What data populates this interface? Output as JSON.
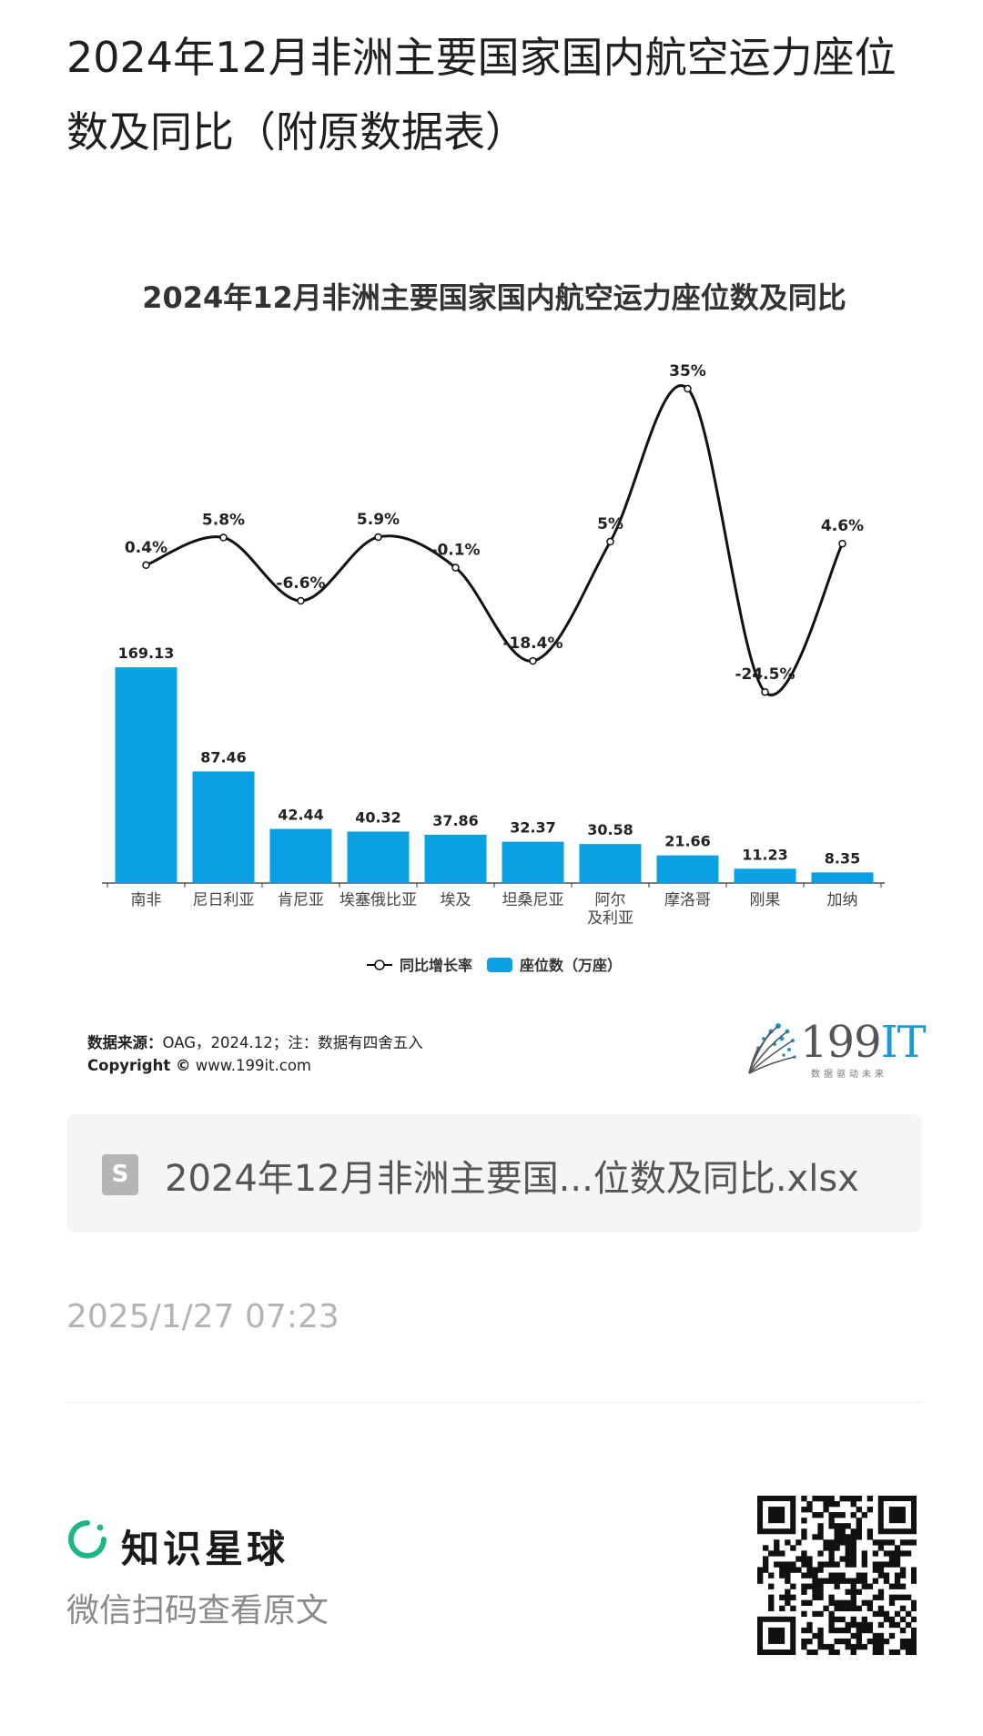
{
  "post": {
    "title": "2024年12月非洲主要国家国内航空运力座位数及同比（附原数据表）",
    "time": "2025/1/27 07:23"
  },
  "chart": {
    "title": "2024年12月非洲主要国家国内航空运力座位数及同比",
    "source_label": "数据来源：",
    "source_text": "OAG，2024.12；注：数据有四舍五入",
    "copyright_label": "Copyright ©",
    "copyright_text": "www.199it.com",
    "logo_number": "199",
    "logo_it": "IT",
    "logo_slogan": "数据驱动未来"
  },
  "chart_data": {
    "type": "bar",
    "title": "2024年12月非洲主要国家国内航空运力座位数及同比",
    "categories": [
      "南非",
      "尼日利亚",
      "肯尼亚",
      "埃塞俄比亚",
      "埃及",
      "坦桑尼亚",
      "阿尔及利亚",
      "摩洛哥",
      "刚果",
      "加纳"
    ],
    "category_lines": [
      [
        "南非"
      ],
      [
        "尼日利亚"
      ],
      [
        "肯尼亚"
      ],
      [
        "埃塞俄比亚"
      ],
      [
        "埃及"
      ],
      [
        "坦桑尼亚"
      ],
      [
        "阿尔",
        "及利亚"
      ],
      [
        "摩洛哥"
      ],
      [
        "刚果"
      ],
      [
        "加纳"
      ]
    ],
    "series": [
      {
        "name": "座位数（万座）",
        "kind": "bar",
        "color": "#0aa1e4",
        "values": [
          169.13,
          87.46,
          42.44,
          40.32,
          37.86,
          32.37,
          30.58,
          21.66,
          11.23,
          8.35
        ],
        "labels": [
          "169.13",
          "87.46",
          "42.44",
          "40.32",
          "37.86",
          "32.37",
          "30.58",
          "21.66",
          "11.23",
          "8.35"
        ]
      },
      {
        "name": "同比增长率",
        "kind": "line",
        "color": "#111111",
        "values": [
          0.4,
          5.8,
          -6.6,
          5.9,
          -0.1,
          -18.4,
          5,
          35,
          -24.5,
          4.6
        ],
        "labels": [
          "0.4%",
          "5.8%",
          "-6.6%",
          "5.9%",
          "-0.1%",
          "-18.4%",
          "5%",
          "35%",
          "-24.5%",
          "4.6%"
        ]
      }
    ],
    "legend": [
      "同比增长率",
      "座位数（万座）"
    ],
    "legend_position": "bottom",
    "grid": false
  },
  "file": {
    "icon_letter": "S",
    "name": "2024年12月非洲主要国...位数及同比.xlsx"
  },
  "footer": {
    "brand": "知识星球",
    "scan_hint": "微信扫码查看原文"
  },
  "colors": {
    "bar": "#0aa1e4",
    "line": "#111111",
    "brand_green": "#1db58a",
    "muted": "#b4b4b4"
  }
}
